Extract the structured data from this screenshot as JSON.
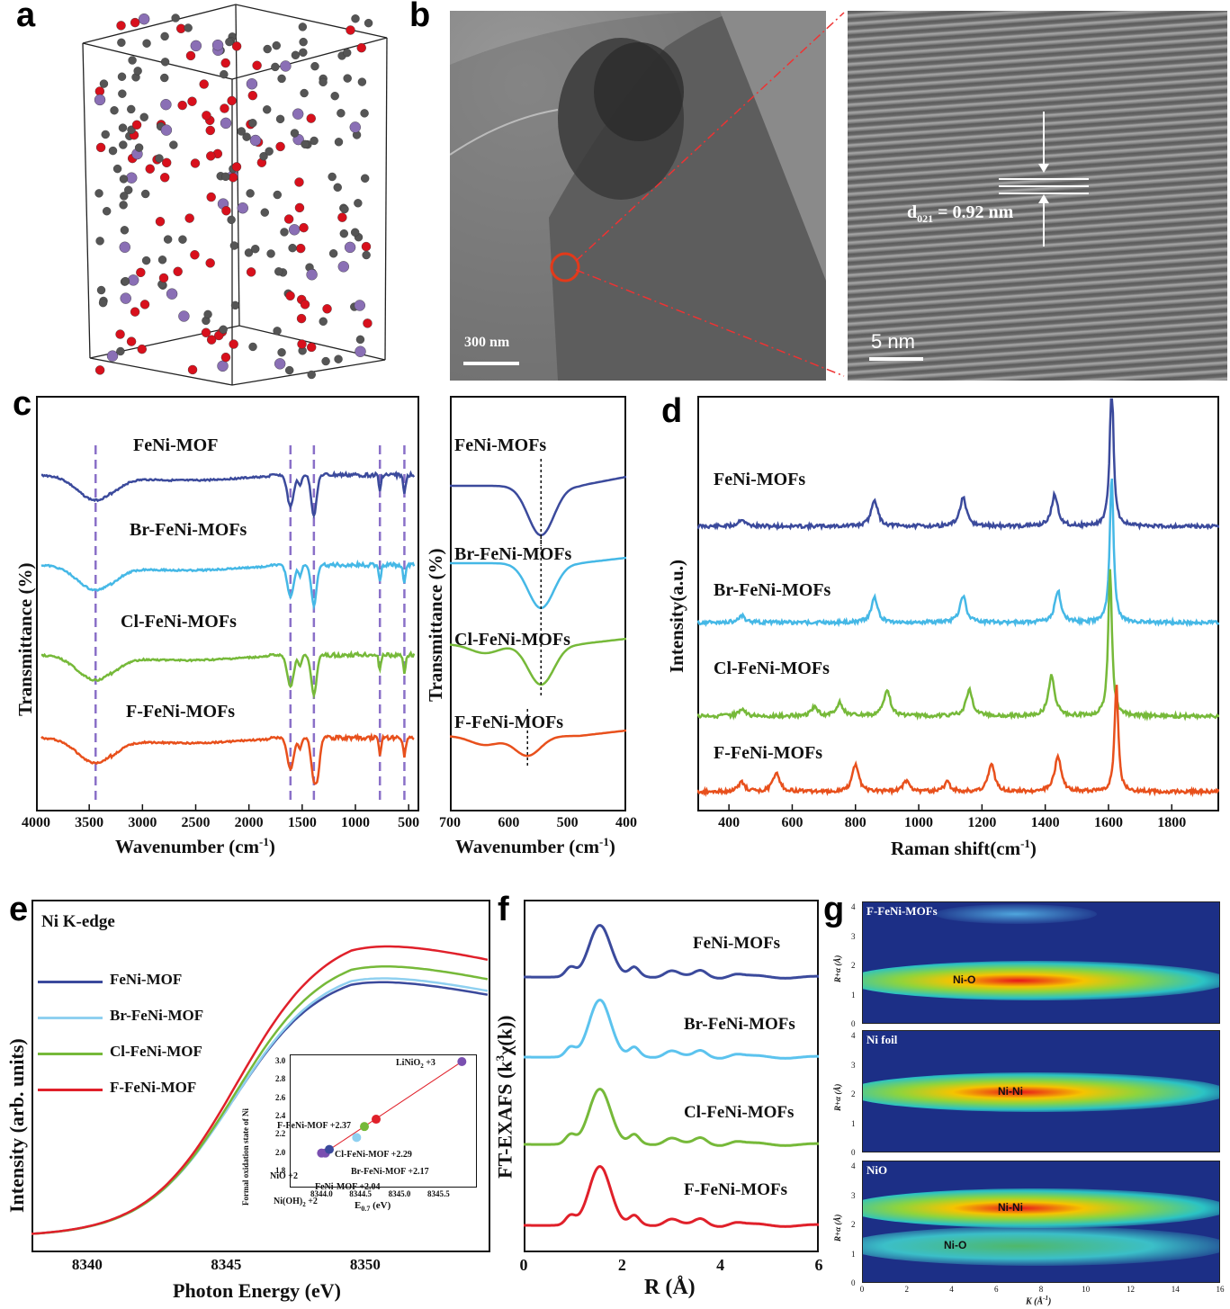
{
  "panels": {
    "a": {
      "letter": "a"
    },
    "b": {
      "letter": "b",
      "scale_left": "300 nm",
      "scale_right": "5 nm",
      "d_spacing_main": "d",
      "d_spacing_sub": "021",
      "d_spacing_value": " = 0.92 nm"
    },
    "c": {
      "letter": "c"
    },
    "d": {
      "letter": "d"
    },
    "e": {
      "letter": "e"
    },
    "f": {
      "letter": "f"
    },
    "g": {
      "letter": "g"
    }
  },
  "colors": {
    "feni": "#3b4a9c",
    "br": "#45b8e6",
    "cl": "#76b939",
    "f": "#e8501c",
    "red": "#e0202a",
    "dash": "#8a70c8"
  },
  "chart_data": [
    {
      "id": "c-left",
      "type": "line",
      "xlabel": "Wavenumber (cm",
      "xlabel_sup": "-1",
      "xlabel_end": ")",
      "ylabel": "Transmittance (%)",
      "xlim": [
        4000,
        400
      ],
      "xticks": [
        "4000",
        "3500",
        "3000",
        "2500",
        "2000",
        "1500",
        "1000",
        "500"
      ],
      "dashed_lines_x": [
        3440,
        1610,
        1390,
        770,
        540
      ],
      "series": [
        {
          "name": "FeNi-MOF",
          "color": "#3b4a9c"
        },
        {
          "name": "Br-FeNi-MOFs",
          "color": "#45b8e6"
        },
        {
          "name": "Cl-FeNi-MOFs",
          "color": "#76b939"
        },
        {
          "name": "F-FeNi-MOFs",
          "color": "#e8501c"
        }
      ]
    },
    {
      "id": "c-right",
      "type": "line",
      "xlabel": "Wavenumber (cm",
      "xlabel_sup": "-1",
      "xlabel_end": ")",
      "ylabel": "Transmittance (%)",
      "xlim": [
        700,
        400
      ],
      "xticks": [
        "700",
        "600",
        "500",
        "400"
      ],
      "peak_markers_x": [
        545,
        545,
        545,
        568
      ],
      "series": [
        {
          "name": "FeNi-MOFs",
          "color": "#3b4a9c"
        },
        {
          "name": "Br-FeNi-MOFs",
          "color": "#45b8e6"
        },
        {
          "name": "Cl-FeNi-MOFs",
          "color": "#76b939"
        },
        {
          "name": "F-FeNi-MOFs",
          "color": "#e8501c"
        }
      ]
    },
    {
      "id": "d",
      "type": "line",
      "xlabel": "Raman shift(cm",
      "xlabel_sup": "-1",
      "xlabel_end": ")",
      "ylabel": "Intensity(a.u.)",
      "xlim": [
        300,
        1950
      ],
      "xticks": [
        "400",
        "600",
        "800",
        "1000",
        "1200",
        "1400",
        "1600",
        "1800"
      ],
      "series": [
        {
          "name": "FeNi-MOFs",
          "color": "#3b4a9c",
          "peaks": [
            [
              440,
              8
            ],
            [
              860,
              30
            ],
            [
              1140,
              32
            ],
            [
              1430,
              35
            ],
            [
              1610,
              150
            ]
          ]
        },
        {
          "name": "Br-FeNi-MOFs",
          "color": "#45b8e6",
          "peaks": [
            [
              440,
              8
            ],
            [
              860,
              28
            ],
            [
              1140,
              30
            ],
            [
              1440,
              35
            ],
            [
              1610,
              150
            ]
          ]
        },
        {
          "name": "Cl-FeNi-MOFs",
          "color": "#76b939",
          "peaks": [
            [
              440,
              8
            ],
            [
              670,
              10
            ],
            [
              750,
              15
            ],
            [
              900,
              30
            ],
            [
              1160,
              30
            ],
            [
              1420,
              45
            ],
            [
              1605,
              150
            ]
          ]
        },
        {
          "name": "F-FeNi-MOFs",
          "color": "#e8501c",
          "peaks": [
            [
              440,
              10
            ],
            [
              550,
              22
            ],
            [
              800,
              30
            ],
            [
              960,
              12
            ],
            [
              1090,
              10
            ],
            [
              1230,
              30
            ],
            [
              1440,
              40
            ],
            [
              1625,
              150
            ]
          ]
        }
      ]
    },
    {
      "id": "e",
      "type": "line",
      "title": "Ni K-edge",
      "xlabel": "Photon Energy (eV)",
      "ylabel": "Intensity (arb. units)",
      "xlim": [
        8338,
        8354.5
      ],
      "xticks": [
        "8340",
        "8345",
        "8350"
      ],
      "series": [
        {
          "name": "FeNi-MOF",
          "color": "#3b4a9c",
          "peak": 1.24
        },
        {
          "name": "Br-FeNi-MOF",
          "color": "#8fd0f0",
          "peak": 1.26
        },
        {
          "name": "Cl-FeNi-MOF",
          "color": "#76b939",
          "peak": 1.32
        },
        {
          "name": "F-FeNi-MOF",
          "color": "#e0202a",
          "peak": 1.42
        }
      ],
      "inset": {
        "type": "scatter",
        "xlabel": "E",
        "xlabel_sub": "0.7",
        "xlabel_end": " (eV)",
        "ylabel": "Formal oxidation state of Ni",
        "xlim": [
          8343.8,
          8345.9
        ],
        "ylim": [
          1.8,
          3.0
        ],
        "xticks": [
          "8344.0",
          "8344.5",
          "8345.0",
          "8345.5"
        ],
        "yticks": [
          "1.8",
          "2.0",
          "2.2",
          "2.4",
          "2.6",
          "2.8",
          "3.0"
        ],
        "points": [
          {
            "label": "NiO  +2",
            "x": 8344.0,
            "y": 2.0,
            "color": "#7a4fb0"
          },
          {
            "label": "Ni(OH)",
            "label_sub": "2",
            "label_end": " +2",
            "x": 8344.05,
            "y": 2.0,
            "color": "#7a4fb0"
          },
          {
            "label": "FeNi-MOF  +2.04",
            "x": 8344.1,
            "y": 2.04,
            "color": "#3b4a9c"
          },
          {
            "label": "Br-FeNi-MOF  +2.17",
            "x": 8344.45,
            "y": 2.17,
            "color": "#8fd0f0"
          },
          {
            "label": "Cl-FeNi-MOF   +2.29",
            "x": 8344.55,
            "y": 2.29,
            "color": "#76b939"
          },
          {
            "label": "F-FeNi-MOF +2.37",
            "x": 8344.7,
            "y": 2.37,
            "color": "#e0202a"
          },
          {
            "label": "LiNiO",
            "label_sub": "2",
            "label_end": "  +3",
            "x": 8345.8,
            "y": 3.0,
            "color": "#7a4fb0"
          }
        ]
      }
    },
    {
      "id": "f",
      "type": "line",
      "xlabel": "R (Å)",
      "ylabel": "FT-EXAFS (k",
      "ylabel_sup": "3",
      "ylabel_end": "χ(k))",
      "xlim": [
        0,
        6
      ],
      "xticks": [
        "0",
        "2",
        "4",
        "6"
      ],
      "series": [
        {
          "name": "FeNi-MOFs",
          "color": "#3b4a9c"
        },
        {
          "name": "Br-FeNi-MOFs",
          "color": "#5cc3ee"
        },
        {
          "name": "Cl-FeNi-MOFs",
          "color": "#76b939"
        },
        {
          "name": "F-FeNi-MOFs",
          "color": "#e0202a"
        }
      ]
    },
    {
      "id": "g",
      "type": "heatmap",
      "xlabel": "K (Å",
      "xlabel_sup": "-1",
      "xlabel_end": ")",
      "ylabel": "R+α (Å)",
      "xlim": [
        0,
        16
      ],
      "xticks": [
        "0",
        "2",
        "4",
        "6",
        "8",
        "10",
        "12",
        "14",
        "16"
      ],
      "yticks": [
        "0",
        "1",
        "2",
        "3",
        "4"
      ],
      "maps": [
        {
          "name": "F-FeNi-MOFs",
          "bands": [
            {
              "label": "Ni-O",
              "r": 1.5
            }
          ]
        },
        {
          "name": "Ni foil",
          "bands": [
            {
              "label": "Ni-Ni",
              "r": 2.1
            }
          ]
        },
        {
          "name": "NiO",
          "bands": [
            {
              "label": "Ni-Ni",
              "r": 2.6
            },
            {
              "label": "Ni-O",
              "r": 1.3
            }
          ]
        }
      ]
    }
  ]
}
